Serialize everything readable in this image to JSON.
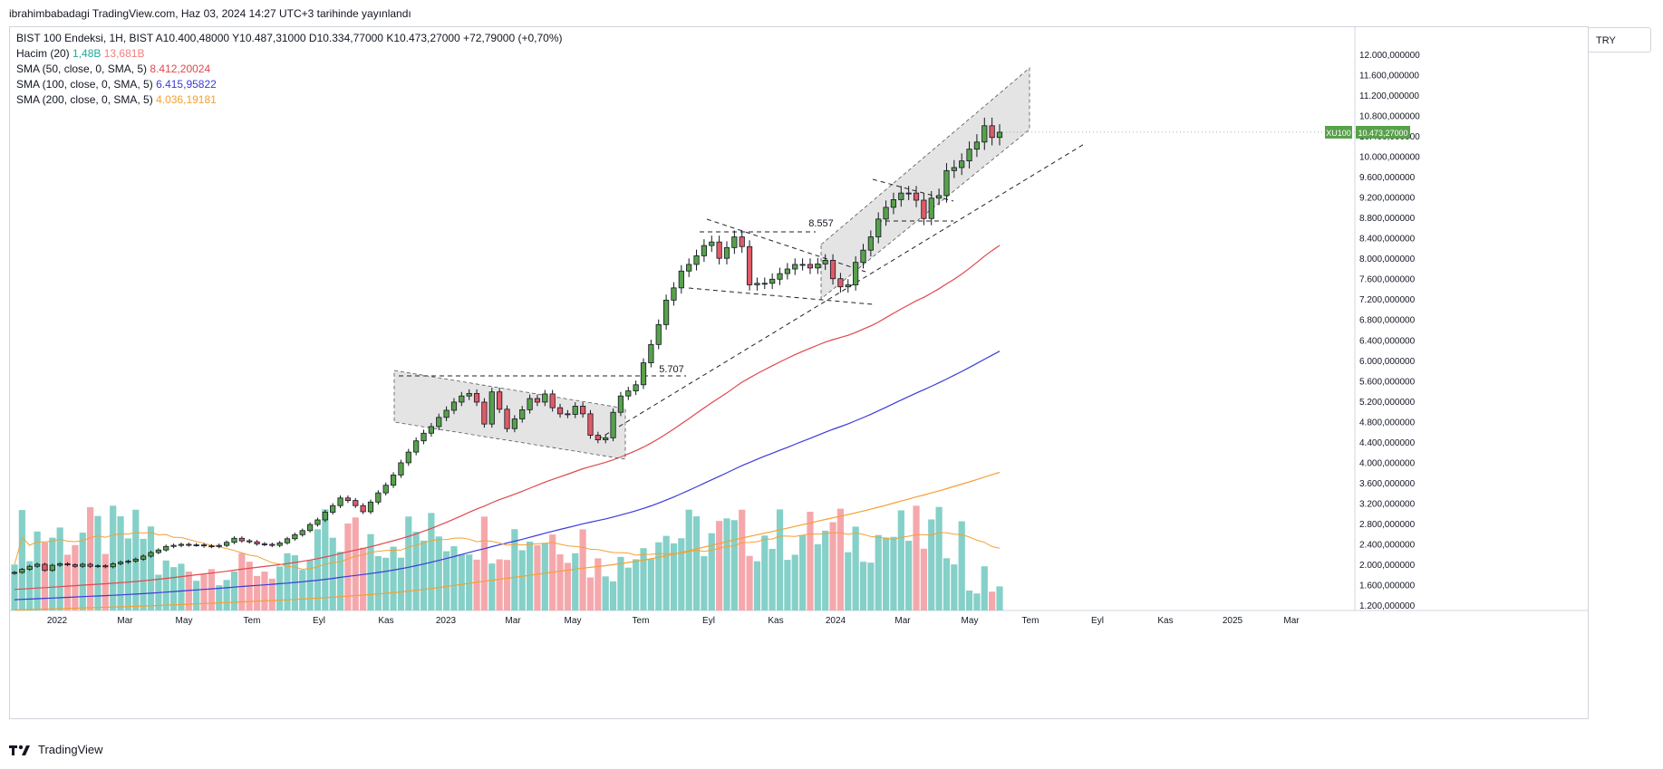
{
  "header": {
    "publish_line": "ibrahimbabadagi TradingView.com, Haz 03, 2024 14:27 UTC+3 tarihinde yayınlandı"
  },
  "legend": {
    "symbol_line": "BIST 100 Endeksi, 1H, BIST  A10.400,48000  Y10.487,31000  D10.334,77000  K10.473,27000  +72,79000 (+0,70%)",
    "volume": {
      "label": "Hacim (20)",
      "v1": "1,48B",
      "v2": "13,681B"
    },
    "sma50": {
      "label": "SMA (50, close, 0, SMA, 5)",
      "value": "8.412,20024"
    },
    "sma100": {
      "label": "SMA (100, close, 0, SMA, 5)",
      "value": "6.415,95822"
    },
    "sma200": {
      "label": "SMA (200, close, 0, SMA, 5)",
      "value": "4.036,19181"
    }
  },
  "currency": "TRY",
  "footer": {
    "brand": "TradingView"
  },
  "colors": {
    "up": "#58a14b",
    "down": "#e05a67",
    "vol_up": "#7ecdc5",
    "vol_down": "#f4a3a8",
    "sma50": "#e0474c",
    "sma100": "#3b3bd9",
    "sma200": "#f5a033",
    "price_tag": "#58a14b"
  },
  "chart_data": {
    "type": "candlestick",
    "y_range": [
      1000,
      12400
    ],
    "y_ticks": [
      "12.000,000000",
      "11.600,000000",
      "11.200,000000",
      "10.800,000000",
      "10.400,000000",
      "10.000,000000",
      "9.600,000000",
      "9.200,000000",
      "8.800,000000",
      "8.400,000000",
      "8.000,000000",
      "7.600,000000",
      "7.200,000000",
      "6.800,000000",
      "6.400,000000",
      "6.000,000000",
      "5.600,000000",
      "5.200,000000",
      "4.800,000000",
      "4.400,000000",
      "4.000,000000",
      "3.600,000000",
      "3.200,000000",
      "2.800,000000",
      "2.400,000000",
      "2.000,000000",
      "1.600,000000",
      "1.200,000000"
    ],
    "y_tick_values": [
      12000,
      11600,
      11200,
      10800,
      10400,
      10000,
      9600,
      9200,
      8800,
      8400,
      8000,
      7600,
      7200,
      6800,
      6400,
      6000,
      5600,
      5200,
      4800,
      4400,
      4000,
      3600,
      3200,
      2800,
      2400,
      2000,
      1600,
      1200
    ],
    "x_labels": [
      "2022",
      "Mar",
      "May",
      "Tem",
      "Eyl",
      "Kas",
      "2023",
      "Mar",
      "May",
      "Tem",
      "Eyl",
      "Kas",
      "2024",
      "Mar",
      "May",
      "Tem",
      "Eyl",
      "Kas",
      "2025",
      "Mar"
    ],
    "price_tag": {
      "symbol": "XU100",
      "value": "10.473,27000",
      "price": 10473
    },
    "closes": [
      1840,
      1900,
      1960,
      2000,
      1880,
      1980,
      2010,
      1990,
      1960,
      2000,
      1960,
      1970,
      1950,
      2010,
      2040,
      2060,
      2100,
      2160,
      2230,
      2280,
      2350,
      2370,
      2390,
      2380,
      2380,
      2360,
      2350,
      2370,
      2430,
      2510,
      2460,
      2440,
      2400,
      2390,
      2370,
      2420,
      2500,
      2580,
      2660,
      2780,
      2870,
      3020,
      3150,
      3300,
      3250,
      3150,
      3030,
      3220,
      3400,
      3550,
      3750,
      3990,
      4200,
      4420,
      4570,
      4700,
      4880,
      5020,
      5180,
      5300,
      5350,
      5180,
      4750,
      5380,
      5040,
      4660,
      4850,
      5030,
      5250,
      5180,
      5340,
      5070,
      4950,
      4940,
      5100,
      4950,
      4530,
      4440,
      4480,
      4980,
      5300,
      5400,
      5520,
      5950,
      6310,
      6700,
      7180,
      7420,
      7750,
      7880,
      8050,
      8250,
      8320,
      8000,
      8210,
      8420,
      8230,
      7480,
      7510,
      7510,
      7590,
      7700,
      7790,
      7880,
      7880,
      7810,
      7890,
      7960,
      7600,
      7440,
      7480,
      7920,
      8160,
      8420,
      8770,
      9000,
      9150,
      9280,
      9280,
      9140,
      8780,
      9180,
      9230,
      9720,
      9780,
      9910,
      10140,
      10280,
      10600,
      10370,
      10473
    ],
    "annotations": [
      "5.707",
      "8.557"
    ]
  }
}
